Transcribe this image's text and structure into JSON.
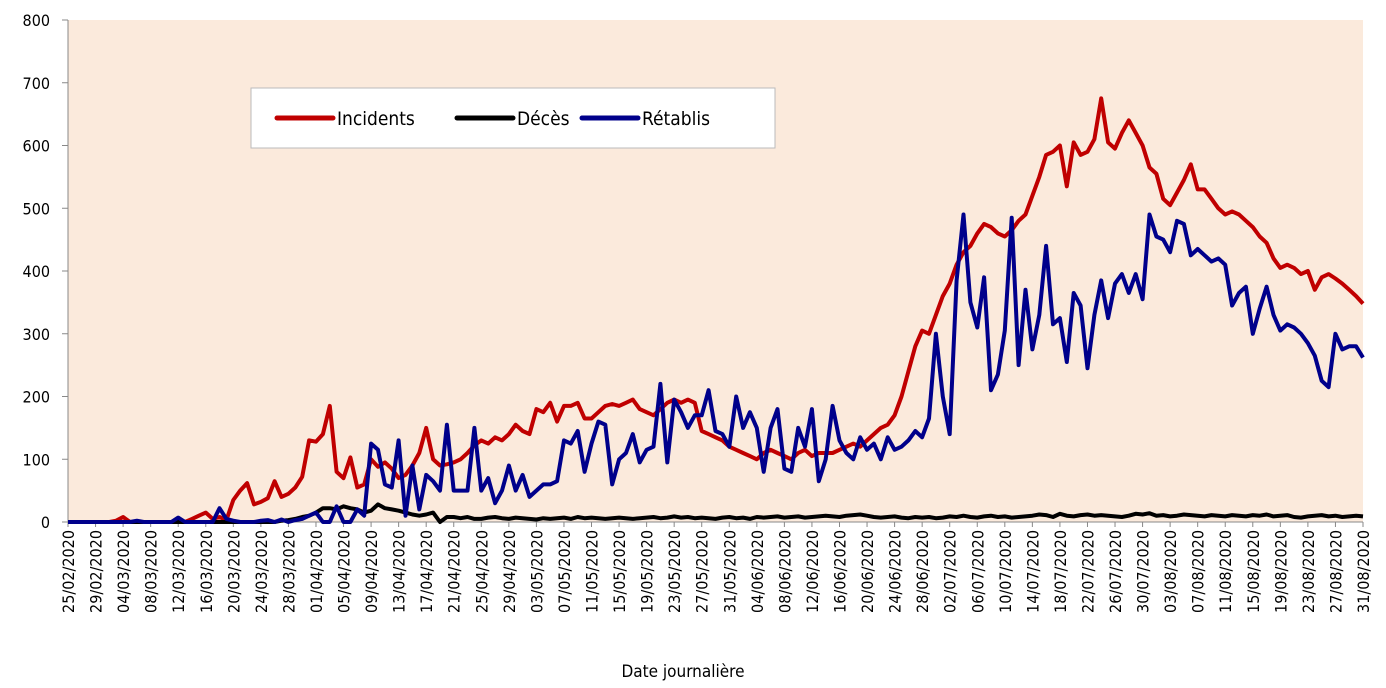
{
  "chart_data": {
    "type": "line",
    "xlabel": "Date journalière",
    "categories": [
      "25/02/2020",
      null,
      null,
      null,
      "29/02/2020",
      null,
      null,
      null,
      "04/03/2020",
      null,
      null,
      null,
      "08/03/2020",
      null,
      null,
      null,
      "12/03/2020",
      null,
      null,
      null,
      "16/03/2020",
      null,
      null,
      null,
      "20/03/2020",
      null,
      null,
      null,
      "24/03/2020",
      null,
      null,
      null,
      "28/03/2020",
      null,
      null,
      null,
      "01/04/2020",
      null,
      null,
      null,
      "05/04/2020",
      null,
      null,
      null,
      "09/04/2020",
      null,
      null,
      null,
      "13/04/2020",
      null,
      null,
      null,
      "17/04/2020",
      null,
      null,
      null,
      "21/04/2020",
      null,
      null,
      null,
      "25/04/2020",
      null,
      null,
      null,
      "29/04/2020",
      null,
      null,
      null,
      "03/05/2020",
      null,
      null,
      null,
      "07/05/2020",
      null,
      null,
      null,
      "11/05/2020",
      null,
      null,
      null,
      "15/05/2020",
      null,
      null,
      null,
      "19/05/2020",
      null,
      null,
      null,
      "23/05/2020",
      null,
      null,
      null,
      "27/05/2020",
      null,
      null,
      null,
      "31/05/2020",
      null,
      null,
      null,
      "04/06/2020",
      null,
      null,
      null,
      "08/06/2020",
      null,
      null,
      null,
      "12/06/2020",
      null,
      null,
      null,
      "16/06/2020",
      null,
      null,
      null,
      "20/06/2020",
      null,
      null,
      null,
      "24/06/2020",
      null,
      null,
      null,
      "28/06/2020",
      null,
      null,
      null,
      "02/07/2020",
      null,
      null,
      null,
      "06/07/2020",
      null,
      null,
      null,
      "10/07/2020",
      null,
      null,
      null,
      "14/07/2020",
      null,
      null,
      null,
      "18/07/2020",
      null,
      null,
      null,
      "22/07/2020",
      null,
      null,
      null,
      "26/07/2020",
      null,
      null,
      null,
      "30/07/2020",
      null,
      null,
      null,
      "03/08/2020",
      null,
      null,
      null,
      "07/08/2020",
      null,
      null,
      null,
      "11/08/2020",
      null,
      null,
      null,
      "15/08/2020",
      null,
      null,
      null,
      "19/08/2020",
      null,
      null,
      null,
      "23/08/2020",
      null,
      null,
      null,
      "27/08/2020",
      null,
      null,
      null,
      "31/08/2020"
    ],
    "series": [
      {
        "name": "Incidents",
        "color": "#c00000",
        "values": [
          0,
          0,
          0,
          0,
          0,
          0,
          0,
          2,
          8,
          0,
          0,
          0,
          0,
          0,
          0,
          0,
          0,
          0,
          5,
          10,
          15,
          5,
          8,
          3,
          35,
          50,
          62,
          28,
          32,
          38,
          65,
          40,
          45,
          55,
          72,
          130,
          128,
          140,
          185,
          80,
          70,
          103,
          55,
          60,
          100,
          88,
          95,
          85,
          70,
          75,
          90,
          110,
          150,
          100,
          90,
          92,
          95,
          100,
          110,
          122,
          130,
          125,
          135,
          130,
          140,
          155,
          145,
          140,
          180,
          175,
          190,
          160,
          185,
          185,
          190,
          165,
          165,
          175,
          185,
          188,
          185,
          190,
          195,
          180,
          175,
          170,
          180,
          190,
          195,
          190,
          195,
          190,
          145,
          140,
          135,
          130,
          120,
          115,
          110,
          105,
          100,
          110,
          115,
          110,
          105,
          100,
          110,
          115,
          105,
          110,
          110,
          110,
          115,
          120,
          125,
          120,
          130,
          140,
          150,
          155,
          170,
          200,
          240,
          280,
          305,
          300,
          330,
          360,
          380,
          410,
          430,
          440,
          460,
          475,
          470,
          460,
          455,
          465,
          480,
          490,
          520,
          550,
          585,
          590,
          600,
          535,
          605,
          585,
          590,
          610,
          675,
          605,
          595,
          620,
          640,
          620,
          600,
          565,
          555,
          515,
          505,
          525,
          545,
          570,
          530,
          530,
          515,
          500,
          490,
          495,
          490,
          480,
          470,
          455,
          445,
          420,
          405,
          410,
          405,
          395,
          400,
          370,
          390,
          395,
          388,
          380,
          370,
          360,
          348
        ]
      },
      {
        "name": "Décès",
        "color": "#000000",
        "values": [
          0,
          0,
          0,
          0,
          0,
          0,
          0,
          0,
          0,
          0,
          0,
          0,
          0,
          0,
          0,
          0,
          0,
          0,
          0,
          0,
          0,
          0,
          0,
          0,
          0,
          0,
          0,
          0,
          0,
          0,
          0,
          2,
          3,
          5,
          8,
          10,
          15,
          22,
          22,
          20,
          25,
          22,
          20,
          15,
          18,
          28,
          22,
          20,
          18,
          15,
          12,
          10,
          12,
          15,
          0,
          8,
          8,
          6,
          8,
          5,
          5,
          7,
          8,
          6,
          5,
          7,
          6,
          5,
          4,
          6,
          5,
          6,
          7,
          5,
          8,
          6,
          7,
          6,
          5,
          6,
          7,
          6,
          5,
          6,
          7,
          8,
          6,
          7,
          9,
          7,
          8,
          6,
          7,
          6,
          5,
          7,
          8,
          6,
          7,
          5,
          8,
          7,
          8,
          9,
          7,
          8,
          9,
          7,
          8,
          9,
          10,
          9,
          8,
          10,
          11,
          12,
          10,
          8,
          7,
          8,
          9,
          7,
          6,
          8,
          7,
          8,
          6,
          7,
          9,
          8,
          10,
          8,
          7,
          9,
          10,
          8,
          9,
          7,
          8,
          9,
          10,
          12,
          11,
          8,
          13,
          10,
          9,
          11,
          12,
          10,
          11,
          10,
          9,
          8,
          10,
          13,
          12,
          14,
          10,
          11,
          9,
          10,
          12,
          11,
          10,
          9,
          11,
          10,
          9,
          11,
          10,
          9,
          11,
          10,
          12,
          9,
          10,
          11,
          8,
          7,
          9,
          10,
          11,
          9,
          10,
          8,
          9,
          10,
          9
        ]
      },
      {
        "name": "Rétablis",
        "color": "#00008b",
        "values": [
          0,
          0,
          0,
          0,
          0,
          0,
          0,
          0,
          0,
          0,
          2,
          0,
          0,
          0,
          0,
          0,
          7,
          0,
          0,
          0,
          0,
          0,
          22,
          5,
          2,
          0,
          0,
          0,
          2,
          3,
          0,
          4,
          0,
          3,
          5,
          10,
          15,
          0,
          0,
          25,
          0,
          0,
          20,
          10,
          125,
          115,
          60,
          55,
          130,
          10,
          90,
          20,
          75,
          65,
          50,
          155,
          50,
          50,
          50,
          150,
          50,
          70,
          30,
          50,
          90,
          50,
          75,
          40,
          50,
          60,
          60,
          65,
          130,
          125,
          145,
          80,
          125,
          160,
          155,
          60,
          100,
          110,
          140,
          95,
          115,
          120,
          220,
          95,
          195,
          175,
          150,
          170,
          170,
          210,
          145,
          140,
          120,
          200,
          150,
          175,
          150,
          80,
          150,
          180,
          85,
          80,
          150,
          120,
          180,
          65,
          100,
          185,
          130,
          110,
          100,
          135,
          115,
          125,
          100,
          135,
          115,
          120,
          130,
          145,
          135,
          165,
          300,
          200,
          140,
          385,
          490,
          350,
          310,
          390,
          210,
          235,
          305,
          485,
          250,
          370,
          275,
          330,
          440,
          315,
          325,
          255,
          365,
          345,
          245,
          330,
          385,
          325,
          380,
          395,
          365,
          395,
          355,
          490,
          455,
          450,
          430,
          480,
          475,
          425,
          435,
          425,
          415,
          420,
          410,
          345,
          365,
          375,
          300,
          340,
          375,
          330,
          305,
          315,
          310,
          300,
          285,
          265,
          225,
          215,
          300,
          275,
          280,
          280,
          262
        ]
      }
    ],
    "ylim": [
      0,
      800
    ],
    "yticks": [
      0,
      100,
      200,
      300,
      400,
      500,
      600,
      700,
      800
    ],
    "grid": false,
    "legend": "upper left",
    "background": "#fbeadc"
  }
}
